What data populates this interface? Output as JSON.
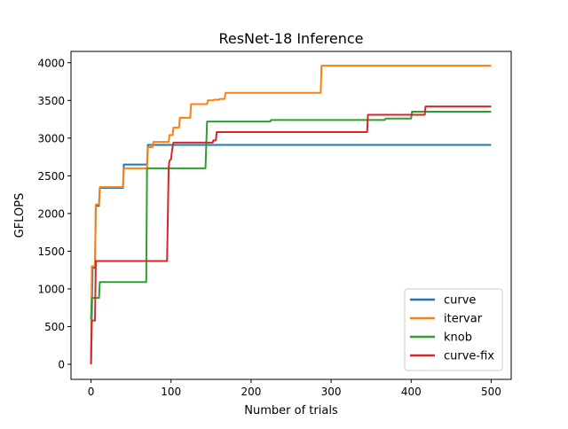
{
  "chart_data": {
    "type": "line",
    "title": "ResNet-18 Inference",
    "xlabel": "Number of trials",
    "ylabel": "GFLOPS",
    "xlim": [
      -25,
      525
    ],
    "ylim": [
      -200,
      4150
    ],
    "xticks": [
      0,
      100,
      200,
      300,
      400,
      500
    ],
    "yticks": [
      0,
      500,
      1000,
      1500,
      2000,
      2500,
      3000,
      3500,
      4000
    ],
    "legend": "lower-right",
    "grid": false,
    "step": true,
    "series": [
      {
        "name": "curve",
        "color": "#1f77b4",
        "points": [
          [
            0,
            0
          ],
          [
            2,
            1280
          ],
          [
            5,
            1280
          ],
          [
            6,
            2100
          ],
          [
            10,
            2100
          ],
          [
            11,
            2340
          ],
          [
            40,
            2340
          ],
          [
            41,
            2650
          ],
          [
            70,
            2650
          ],
          [
            71,
            2910
          ],
          [
            500,
            2910
          ]
        ]
      },
      {
        "name": "itervar",
        "color": "#ff7f0e",
        "points": [
          [
            0,
            0
          ],
          [
            1,
            1300
          ],
          [
            5,
            1300
          ],
          [
            6,
            2120
          ],
          [
            10,
            2120
          ],
          [
            11,
            2350
          ],
          [
            40,
            2350
          ],
          [
            41,
            2600
          ],
          [
            70,
            2600
          ],
          [
            71,
            2880
          ],
          [
            77,
            2880
          ],
          [
            78,
            2950
          ],
          [
            97,
            2950
          ],
          [
            98,
            3040
          ],
          [
            102,
            3040
          ],
          [
            103,
            3140
          ],
          [
            110,
            3140
          ],
          [
            111,
            3270
          ],
          [
            124,
            3270
          ],
          [
            125,
            3450
          ],
          [
            145,
            3450
          ],
          [
            146,
            3500
          ],
          [
            153,
            3500
          ],
          [
            154,
            3510
          ],
          [
            160,
            3510
          ],
          [
            161,
            3520
          ],
          [
            167,
            3520
          ],
          [
            168,
            3600
          ],
          [
            287,
            3600
          ],
          [
            288,
            3960
          ],
          [
            500,
            3960
          ]
        ]
      },
      {
        "name": "knob",
        "color": "#2ca02c",
        "points": [
          [
            0,
            590
          ],
          [
            1,
            880
          ],
          [
            10,
            880
          ],
          [
            11,
            1090
          ],
          [
            69,
            1090
          ],
          [
            70,
            2600
          ],
          [
            143,
            2600
          ],
          [
            145,
            3220
          ],
          [
            224,
            3220
          ],
          [
            225,
            3240
          ],
          [
            367,
            3240
          ],
          [
            368,
            3260
          ],
          [
            400,
            3260
          ],
          [
            401,
            3350
          ],
          [
            500,
            3350
          ]
        ]
      },
      {
        "name": "curve-fix",
        "color": "#d62728",
        "points": [
          [
            0,
            0
          ],
          [
            1,
            580
          ],
          [
            5,
            580
          ],
          [
            6,
            1370
          ],
          [
            95,
            1370
          ],
          [
            96,
            1950
          ],
          [
            97,
            2600
          ],
          [
            98,
            2700
          ],
          [
            100,
            2720
          ],
          [
            101,
            2820
          ],
          [
            103,
            2940
          ],
          [
            152,
            2940
          ],
          [
            153,
            2970
          ],
          [
            156,
            2970
          ],
          [
            157,
            3080
          ],
          [
            345,
            3080
          ],
          [
            346,
            3310
          ],
          [
            417,
            3310
          ],
          [
            418,
            3420
          ],
          [
            500,
            3420
          ]
        ]
      }
    ]
  }
}
